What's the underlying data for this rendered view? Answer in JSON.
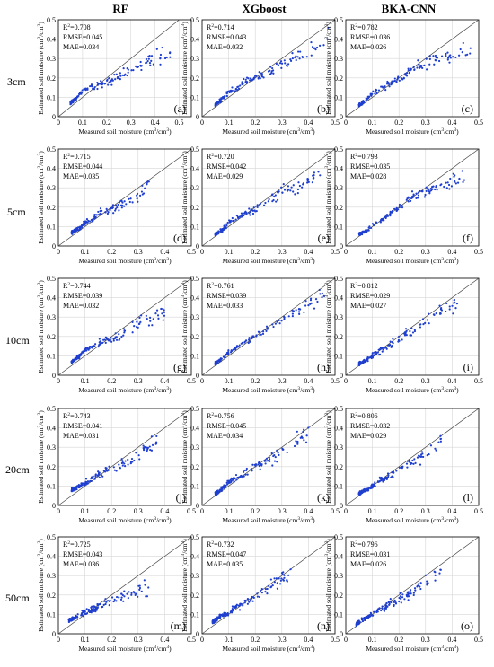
{
  "figure": {
    "columns": [
      "RF",
      "XGboost",
      "BKA-CNN"
    ],
    "rows": [
      "3cm",
      "5cm",
      "10cm",
      "20cm",
      "50cm"
    ],
    "xlabel": "Measured soil moisture (cm³/cm³)",
    "ylabel": "Estimated soil moisture (cm³/cm³)"
  },
  "chart_data": [
    {
      "type": "scatter",
      "model": "RF",
      "depth": "3cm",
      "panel": "(a)",
      "r2": "R²=0.708",
      "rmse": "RMSE=0.045",
      "mae": "MAE=0.034",
      "xlim": [
        0,
        0.55
      ],
      "ylim": [
        0,
        0.5
      ],
      "xticks": [
        "0",
        "0.1",
        "0.2",
        "0.3",
        "0.4",
        "0.5"
      ],
      "yticks": [
        "0",
        "0.1",
        "0.2",
        "0.3",
        "0.4",
        "0.5"
      ],
      "grid": true,
      "one_to_one_line": true,
      "n_points": 150,
      "points": [
        [
          0.05,
          0.07
        ],
        [
          0.08,
          0.1
        ],
        [
          0.1,
          0.14
        ],
        [
          0.12,
          0.15
        ],
        [
          0.15,
          0.16
        ],
        [
          0.18,
          0.17
        ],
        [
          0.2,
          0.18
        ],
        [
          0.22,
          0.19
        ],
        [
          0.25,
          0.2
        ],
        [
          0.3,
          0.24
        ],
        [
          0.4,
          0.3
        ],
        [
          0.45,
          0.32
        ],
        [
          0.5,
          0.33
        ]
      ]
    },
    {
      "type": "scatter",
      "model": "XGboost",
      "depth": "3cm",
      "panel": "(b)",
      "r2": "R²=0.714",
      "rmse": "RMSE=0.043",
      "mae": "MAE=0.032",
      "xlim": [
        0,
        0.5
      ],
      "ylim": [
        0,
        0.5
      ],
      "xticks": [
        "0",
        "0.1",
        "0.2",
        "0.3",
        "0.4",
        "0.5"
      ],
      "yticks": [
        "0",
        "0.1",
        "0.2",
        "0.3",
        "0.4",
        "0.5"
      ],
      "grid": true,
      "one_to_one_line": true,
      "n_points": 150,
      "points": [
        [
          0.05,
          0.06
        ],
        [
          0.08,
          0.1
        ],
        [
          0.1,
          0.13
        ],
        [
          0.13,
          0.14
        ],
        [
          0.16,
          0.18
        ],
        [
          0.2,
          0.2
        ],
        [
          0.25,
          0.23
        ],
        [
          0.3,
          0.27
        ],
        [
          0.35,
          0.3
        ],
        [
          0.4,
          0.35
        ],
        [
          0.45,
          0.38
        ],
        [
          0.48,
          0.42
        ]
      ]
    },
    {
      "type": "scatter",
      "model": "BKA-CNN",
      "depth": "3cm",
      "panel": "(c)",
      "r2": "R²=0.782",
      "rmse": "RMSE=0.036",
      "mae": "MAE=0.026",
      "xlim": [
        0,
        0.5
      ],
      "ylim": [
        0,
        0.5
      ],
      "xticks": [
        "0",
        "0.1",
        "0.2",
        "0.3",
        "0.4",
        "0.5"
      ],
      "yticks": [
        "0",
        "0.1",
        "0.2",
        "0.3",
        "0.4",
        "0.5"
      ],
      "grid": true,
      "one_to_one_line": true,
      "n_points": 150,
      "points": [
        [
          0.05,
          0.06
        ],
        [
          0.08,
          0.09
        ],
        [
          0.1,
          0.12
        ],
        [
          0.14,
          0.15
        ],
        [
          0.18,
          0.18
        ],
        [
          0.22,
          0.21
        ],
        [
          0.26,
          0.25
        ],
        [
          0.3,
          0.28
        ],
        [
          0.35,
          0.3
        ],
        [
          0.42,
          0.33
        ],
        [
          0.48,
          0.35
        ]
      ]
    },
    {
      "type": "scatter",
      "model": "RF",
      "depth": "5cm",
      "panel": "(d)",
      "r2": "R²=0.715",
      "rmse": "RMSE=0.044",
      "mae": "MAE=0.035",
      "xlim": [
        0,
        0.5
      ],
      "ylim": [
        0,
        0.5
      ],
      "xticks": [
        "0",
        "0.1",
        "0.2",
        "0.3",
        "0.4",
        "0.5"
      ],
      "yticks": [
        "0",
        "0.1",
        "0.2",
        "0.3",
        "0.4",
        "0.5"
      ],
      "grid": true,
      "one_to_one_line": true,
      "n_points": 150,
      "points": [
        [
          0.05,
          0.07
        ],
        [
          0.08,
          0.09
        ],
        [
          0.1,
          0.12
        ],
        [
          0.13,
          0.14
        ],
        [
          0.16,
          0.17
        ],
        [
          0.2,
          0.19
        ],
        [
          0.25,
          0.22
        ],
        [
          0.3,
          0.26
        ],
        [
          0.33,
          0.33
        ],
        [
          0.35,
          0.3
        ]
      ]
    },
    {
      "type": "scatter",
      "model": "XGboost",
      "depth": "5cm",
      "panel": "(e)",
      "r2": "R²=0.720",
      "rmse": "RMSE=0.042",
      "mae": "MAE=0.029",
      "xlim": [
        0,
        0.5
      ],
      "ylim": [
        0,
        0.5
      ],
      "xticks": [
        "0",
        "0.1",
        "0.2",
        "0.3",
        "0.4",
        "0.5"
      ],
      "yticks": [
        "0",
        "0.1",
        "0.2",
        "0.3",
        "0.4",
        "0.5"
      ],
      "grid": true,
      "one_to_one_line": true,
      "n_points": 150,
      "points": [
        [
          0.05,
          0.06
        ],
        [
          0.08,
          0.09
        ],
        [
          0.1,
          0.12
        ],
        [
          0.14,
          0.15
        ],
        [
          0.18,
          0.18
        ],
        [
          0.22,
          0.21
        ],
        [
          0.28,
          0.26
        ],
        [
          0.32,
          0.3
        ],
        [
          0.36,
          0.3
        ],
        [
          0.4,
          0.35
        ],
        [
          0.45,
          0.37
        ]
      ]
    },
    {
      "type": "scatter",
      "model": "BKA-CNN",
      "depth": "5cm",
      "panel": "(f)",
      "r2": "R²=0.793",
      "rmse": "RMSE=0.035",
      "mae": "MAE=0.028",
      "xlim": [
        0,
        0.5
      ],
      "ylim": [
        0,
        0.5
      ],
      "xticks": [
        "0",
        "0.1",
        "0.2",
        "0.3",
        "0.4",
        "0.5"
      ],
      "yticks": [
        "0",
        "0.1",
        "0.2",
        "0.3",
        "0.4",
        "0.5"
      ],
      "grid": true,
      "one_to_one_line": true,
      "n_points": 150,
      "points": [
        [
          0.05,
          0.06
        ],
        [
          0.08,
          0.08
        ],
        [
          0.1,
          0.11
        ],
        [
          0.14,
          0.14
        ],
        [
          0.18,
          0.18
        ],
        [
          0.22,
          0.22
        ],
        [
          0.26,
          0.26
        ],
        [
          0.3,
          0.28
        ],
        [
          0.35,
          0.3
        ],
        [
          0.4,
          0.33
        ],
        [
          0.45,
          0.35
        ]
      ]
    },
    {
      "type": "scatter",
      "model": "RF",
      "depth": "10cm",
      "panel": "(g)",
      "r2": "R²=0.744",
      "rmse": "RMSE=0.039",
      "mae": "MAE=0.032",
      "xlim": [
        0,
        0.5
      ],
      "ylim": [
        0,
        0.5
      ],
      "xticks": [
        "0",
        "0.1",
        "0.2",
        "0.3",
        "0.4",
        "0.5"
      ],
      "yticks": [
        "0",
        "0.1",
        "0.2",
        "0.3",
        "0.4",
        "0.5"
      ],
      "grid": true,
      "one_to_one_line": true,
      "n_points": 150,
      "points": [
        [
          0.05,
          0.07
        ],
        [
          0.08,
          0.1
        ],
        [
          0.1,
          0.13
        ],
        [
          0.13,
          0.15
        ],
        [
          0.16,
          0.17
        ],
        [
          0.2,
          0.19
        ],
        [
          0.25,
          0.22
        ],
        [
          0.3,
          0.27
        ],
        [
          0.35,
          0.3
        ],
        [
          0.4,
          0.32
        ]
      ]
    },
    {
      "type": "scatter",
      "model": "XGboost",
      "depth": "10cm",
      "panel": "(h)",
      "r2": "R²=0.761",
      "rmse": "RMSE=0.039",
      "mae": "MAE=0.033",
      "xlim": [
        0,
        0.5
      ],
      "ylim": [
        0,
        0.5
      ],
      "xticks": [
        "0",
        "0.1",
        "0.2",
        "0.3",
        "0.4",
        "0.5"
      ],
      "yticks": [
        "0",
        "0.1",
        "0.2",
        "0.3",
        "0.4",
        "0.5"
      ],
      "grid": true,
      "one_to_one_line": true,
      "n_points": 150,
      "points": [
        [
          0.05,
          0.06
        ],
        [
          0.08,
          0.09
        ],
        [
          0.1,
          0.12
        ],
        [
          0.14,
          0.15
        ],
        [
          0.18,
          0.19
        ],
        [
          0.22,
          0.22
        ],
        [
          0.28,
          0.27
        ],
        [
          0.33,
          0.31
        ],
        [
          0.38,
          0.34
        ],
        [
          0.42,
          0.38
        ],
        [
          0.46,
          0.43
        ]
      ]
    },
    {
      "type": "scatter",
      "model": "BKA-CNN",
      "depth": "10cm",
      "panel": "(i)",
      "r2": "R²=0.812",
      "rmse": "RMSE=0.029",
      "mae": "MAE=0.027",
      "xlim": [
        0,
        0.5
      ],
      "ylim": [
        0,
        0.5
      ],
      "xticks": [
        "0",
        "0.1",
        "0.2",
        "0.3",
        "0.4",
        "0.5"
      ],
      "yticks": [
        "0",
        "0.1",
        "0.2",
        "0.3",
        "0.4",
        "0.5"
      ],
      "grid": true,
      "one_to_one_line": true,
      "n_points": 150,
      "points": [
        [
          0.05,
          0.06
        ],
        [
          0.08,
          0.08
        ],
        [
          0.1,
          0.1
        ],
        [
          0.14,
          0.13
        ],
        [
          0.18,
          0.17
        ],
        [
          0.22,
          0.21
        ],
        [
          0.26,
          0.24
        ],
        [
          0.3,
          0.28
        ],
        [
          0.34,
          0.32
        ],
        [
          0.38,
          0.34
        ],
        [
          0.42,
          0.37
        ]
      ]
    },
    {
      "type": "scatter",
      "model": "RF",
      "depth": "20cm",
      "panel": "(j)",
      "r2": "R²=0.743",
      "rmse": "RMSE=0.041",
      "mae": "MAE=0.031",
      "xlim": [
        0,
        0.5
      ],
      "ylim": [
        0,
        0.5
      ],
      "xticks": [
        "0",
        "0.1",
        "0.2",
        "0.3",
        "0.4",
        "0.5"
      ],
      "yticks": [
        "0",
        "0.1",
        "0.2",
        "0.3",
        "0.4",
        "0.5"
      ],
      "grid": true,
      "one_to_one_line": true,
      "n_points": 150,
      "points": [
        [
          0.05,
          0.08
        ],
        [
          0.08,
          0.1
        ],
        [
          0.1,
          0.12
        ],
        [
          0.14,
          0.15
        ],
        [
          0.18,
          0.18
        ],
        [
          0.22,
          0.2
        ],
        [
          0.26,
          0.22
        ],
        [
          0.3,
          0.25
        ],
        [
          0.34,
          0.3
        ],
        [
          0.37,
          0.34
        ]
      ]
    },
    {
      "type": "scatter",
      "model": "XGboost",
      "depth": "20cm",
      "panel": "(k)",
      "r2": "R²=0.756",
      "rmse": "RMSE=0.045",
      "mae": "MAE=0.034",
      "xlim": [
        0,
        0.5
      ],
      "ylim": [
        0,
        0.5
      ],
      "xticks": [
        "0",
        "0.1",
        "0.2",
        "0.3",
        "0.4",
        "0.5"
      ],
      "yticks": [
        "0",
        "0.1",
        "0.2",
        "0.3",
        "0.4",
        "0.5"
      ],
      "grid": true,
      "one_to_one_line": true,
      "n_points": 150,
      "points": [
        [
          0.05,
          0.06
        ],
        [
          0.08,
          0.09
        ],
        [
          0.1,
          0.12
        ],
        [
          0.14,
          0.15
        ],
        [
          0.18,
          0.18
        ],
        [
          0.22,
          0.21
        ],
        [
          0.28,
          0.25
        ],
        [
          0.32,
          0.3
        ],
        [
          0.36,
          0.34
        ],
        [
          0.4,
          0.37
        ]
      ]
    },
    {
      "type": "scatter",
      "model": "BKA-CNN",
      "depth": "20cm",
      "panel": "(l)",
      "r2": "R²=0.806",
      "rmse": "RMSE=0.032",
      "mae": "MAE=0.029",
      "xlim": [
        0,
        0.5
      ],
      "ylim": [
        0,
        0.5
      ],
      "xticks": [
        "0",
        "0.1",
        "0.2",
        "0.3",
        "0.4",
        "0.5"
      ],
      "yticks": [
        "0",
        "0.1",
        "0.2",
        "0.3",
        "0.4",
        "0.5"
      ],
      "grid": true,
      "one_to_one_line": true,
      "n_points": 150,
      "points": [
        [
          0.05,
          0.06
        ],
        [
          0.08,
          0.08
        ],
        [
          0.1,
          0.1
        ],
        [
          0.14,
          0.14
        ],
        [
          0.18,
          0.17
        ],
        [
          0.22,
          0.2
        ],
        [
          0.26,
          0.23
        ],
        [
          0.3,
          0.26
        ],
        [
          0.33,
          0.3
        ],
        [
          0.36,
          0.34
        ]
      ]
    },
    {
      "type": "scatter",
      "model": "RF",
      "depth": "50cm",
      "panel": "(m)",
      "r2": "R²=0.725",
      "rmse": "RMSE=0.043",
      "mae": "MAE=0.036",
      "xlim": [
        0,
        0.5
      ],
      "ylim": [
        0,
        0.5
      ],
      "xticks": [
        "0",
        "0.1",
        "0.2",
        "0.3",
        "0.4",
        "0.5"
      ],
      "yticks": [
        "0",
        "0.1",
        "0.2",
        "0.3",
        "0.4",
        "0.5"
      ],
      "grid": true,
      "one_to_one_line": true,
      "n_points": 150,
      "points": [
        [
          0.04,
          0.07
        ],
        [
          0.07,
          0.09
        ],
        [
          0.1,
          0.11
        ],
        [
          0.13,
          0.13
        ],
        [
          0.16,
          0.15
        ],
        [
          0.2,
          0.17
        ],
        [
          0.24,
          0.19
        ],
        [
          0.28,
          0.21
        ],
        [
          0.32,
          0.23
        ],
        [
          0.34,
          0.24
        ]
      ]
    },
    {
      "type": "scatter",
      "model": "XGboost",
      "depth": "50cm",
      "panel": "(n)",
      "r2": "R²=0.732",
      "rmse": "RMSE=0.047",
      "mae": "MAE=0.035",
      "xlim": [
        0,
        0.5
      ],
      "ylim": [
        0,
        0.5
      ],
      "xticks": [
        "0",
        "0.1",
        "0.2",
        "0.3",
        "0.4",
        "0.5"
      ],
      "yticks": [
        "0",
        "0.1",
        "0.2",
        "0.3",
        "0.4",
        "0.5"
      ],
      "grid": true,
      "one_to_one_line": true,
      "n_points": 150,
      "points": [
        [
          0.04,
          0.06
        ],
        [
          0.07,
          0.09
        ],
        [
          0.1,
          0.11
        ],
        [
          0.13,
          0.14
        ],
        [
          0.16,
          0.16
        ],
        [
          0.2,
          0.19
        ],
        [
          0.24,
          0.22
        ],
        [
          0.28,
          0.26
        ],
        [
          0.32,
          0.3
        ],
        [
          0.34,
          0.33
        ]
      ]
    },
    {
      "type": "scatter",
      "model": "BKA-CNN",
      "depth": "50cm",
      "panel": "(o)",
      "r2": "R²=0.796",
      "rmse": "RMSE=0.031",
      "mae": "MAE=0.026",
      "xlim": [
        0,
        0.5
      ],
      "ylim": [
        0,
        0.5
      ],
      "xticks": [
        "0",
        "0.1",
        "0.2",
        "0.3",
        "0.4",
        "0.5"
      ],
      "yticks": [
        "0",
        "0.1",
        "0.2",
        "0.3",
        "0.4",
        "0.5"
      ],
      "grid": true,
      "one_to_one_line": true,
      "n_points": 150,
      "points": [
        [
          0.04,
          0.05
        ],
        [
          0.07,
          0.08
        ],
        [
          0.1,
          0.1
        ],
        [
          0.13,
          0.13
        ],
        [
          0.16,
          0.15
        ],
        [
          0.2,
          0.18
        ],
        [
          0.24,
          0.21
        ],
        [
          0.28,
          0.25
        ],
        [
          0.32,
          0.29
        ],
        [
          0.36,
          0.32
        ]
      ]
    }
  ],
  "colors": {
    "points": "#1f3fd0",
    "axes": "#000000",
    "grid": "#d6d6d6",
    "one_to_one": "#444444"
  }
}
